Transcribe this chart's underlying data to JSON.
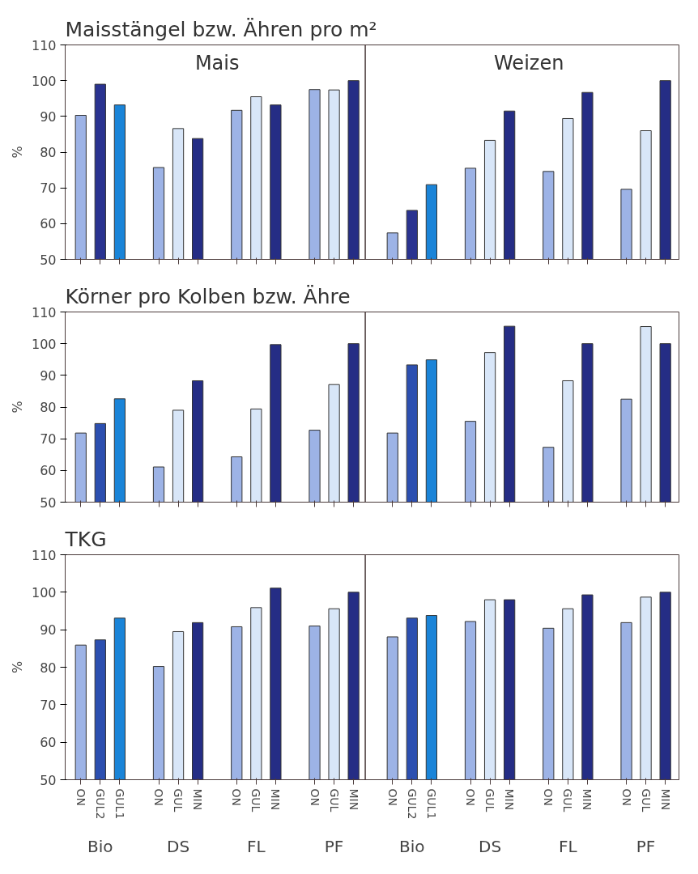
{
  "chart_data": [
    {
      "type": "bar",
      "title": "Maisstängel bzw. Ähren pro m²",
      "ylabel": "%",
      "categories": [
        null,
        null,
        null,
        null,
        null,
        null,
        null,
        null,
        null,
        null,
        null,
        null,
        null,
        null,
        null,
        null,
        null,
        null,
        null,
        null,
        null,
        null,
        null,
        null
      ],
      "values": [
        90.3,
        99,
        93.2,
        75.7,
        86.6,
        83.8,
        91.7,
        95.5,
        93.2,
        97.5,
        97.4,
        100,
        57.4,
        63.7,
        70.9,
        75.5,
        83.3,
        91.5,
        74.6,
        89.4,
        96.7,
        69.6,
        86,
        100
      ],
      "colors": [
        "#9db3e6",
        "#2a3390",
        "#1a84d8",
        "#9db3e6",
        "#d8e6f8",
        "#252d85",
        "#9db3e6",
        "#d8e6f8",
        "#252d85",
        "#9db3e6",
        "#d8e6f8",
        "#252d85",
        "#9db3e6",
        "#2a3390",
        "#1a84d8",
        "#9db3e6",
        "#d8e6f8",
        "#252d85",
        "#9db3e6",
        "#d8e6f8",
        "#252d85",
        "#9db3e6",
        "#d8e6f8",
        "#252d85"
      ],
      "ylim": [
        50,
        110
      ],
      "yticks": [
        50,
        60,
        70,
        80,
        90,
        100,
        110
      ],
      "tick_labels": "y",
      "annotations": [
        "Mais",
        "Weizen"
      ]
    },
    {
      "type": "bar",
      "title": "Körner pro Kolben bzw. Ähre",
      "ylabel": "%",
      "categories": [
        null,
        null,
        null,
        null,
        null,
        null,
        null,
        null,
        null,
        null,
        null,
        null,
        null,
        null,
        null,
        null,
        null,
        null,
        null,
        null,
        null,
        null,
        null,
        null
      ],
      "values": [
        71.8,
        74.8,
        82.6,
        61.1,
        79,
        88.3,
        64.3,
        79.4,
        99.7,
        72.7,
        87.1,
        100,
        71.8,
        93.3,
        94.9,
        75.5,
        97.2,
        105.5,
        67.3,
        88.3,
        100,
        82.5,
        105.4,
        100
      ],
      "colors": [
        "#9db3e6",
        "#2c4fb0",
        "#1a84d8",
        "#9db3e6",
        "#d8e6f8",
        "#252d85",
        "#9db3e6",
        "#d8e6f8",
        "#252d85",
        "#9db3e6",
        "#d8e6f8",
        "#252d85",
        "#9db3e6",
        "#2c4fb0",
        "#1a84d8",
        "#9db3e6",
        "#d8e6f8",
        "#252d85",
        "#9db3e6",
        "#d8e6f8",
        "#252d85",
        "#9db3e6",
        "#d8e6f8",
        "#252d85"
      ],
      "ylim": [
        50,
        110
      ],
      "yticks": [
        50,
        60,
        70,
        80,
        90,
        100,
        110
      ],
      "tick_labels": "y"
    },
    {
      "type": "bar",
      "title": "TKG",
      "ylabel": "%",
      "categories": [
        "ON",
        "GUL2",
        "GUL1",
        "ON",
        "GUL",
        "MIN",
        "ON",
        "GUL",
        "MIN",
        "ON",
        "GUL",
        "MIN",
        "ON",
        "GUL2",
        "GUL1",
        "ON",
        "GUL",
        "MIN",
        "ON",
        "GUL",
        "MIN",
        "ON",
        "GUL",
        "MIN"
      ],
      "values": [
        85.9,
        87.3,
        93.1,
        80.2,
        89.5,
        91.9,
        90.8,
        95.9,
        101.1,
        91,
        95.6,
        100,
        88.1,
        93.1,
        93.8,
        92.2,
        98,
        98,
        90.4,
        95.6,
        99.3,
        91.9,
        98.7,
        100
      ],
      "colors": [
        "#9db3e6",
        "#2c4fb0",
        "#1a84d8",
        "#9db3e6",
        "#d8e6f8",
        "#252d85",
        "#9db3e6",
        "#d8e6f8",
        "#252d85",
        "#9db3e6",
        "#d8e6f8",
        "#252d85",
        "#9db3e6",
        "#2c4fb0",
        "#1a84d8",
        "#9db3e6",
        "#d8e6f8",
        "#252d85",
        "#9db3e6",
        "#d8e6f8",
        "#252d85",
        "#9db3e6",
        "#d8e6f8",
        "#252d85"
      ],
      "ylim": [
        50,
        110
      ],
      "yticks": [
        50,
        60,
        70,
        80,
        90,
        100,
        110
      ],
      "annotations": [
        "Bio",
        "DS",
        "FL",
        "PF",
        "Bio",
        "DS",
        "FL",
        "PF"
      ]
    }
  ]
}
